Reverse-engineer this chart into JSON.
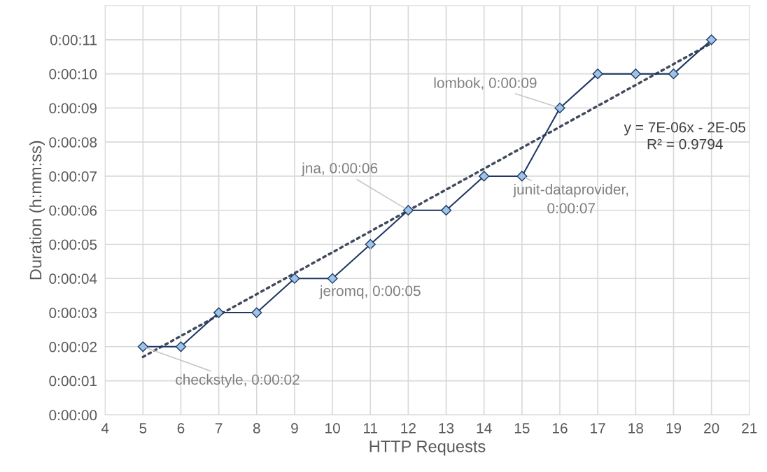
{
  "chart_data": {
    "type": "line",
    "xlabel": "HTTP Requests",
    "ylabel": "Duration (h:mm:ss)",
    "x": [
      5,
      6,
      7,
      8,
      9,
      10,
      11,
      12,
      13,
      14,
      15,
      16,
      17,
      18,
      19,
      20
    ],
    "series": [
      {
        "color": "#1f3864",
        "marker": "diamond",
        "line_style": "solid",
        "values": [
          2,
          2,
          3,
          3,
          4,
          4,
          5,
          6,
          6,
          7,
          7,
          9,
          10,
          10,
          10,
          11
        ]
      },
      {
        "color": "#404a5c",
        "marker": "none",
        "line_style": "dotted",
        "x": [
          5,
          20
        ],
        "values": [
          1.7,
          10.9
        ]
      }
    ],
    "xlim": [
      4,
      21
    ],
    "xticks": [
      4,
      5,
      6,
      7,
      8,
      9,
      10,
      11,
      12,
      13,
      14,
      15,
      16,
      17,
      18,
      19,
      20,
      21
    ],
    "ylim": [
      0,
      12
    ],
    "yticks": [
      {
        "value": 0,
        "label": "0:00:00"
      },
      {
        "value": 1,
        "label": "0:00:01"
      },
      {
        "value": 2,
        "label": "0:00:02"
      },
      {
        "value": 3,
        "label": "0:00:03"
      },
      {
        "value": 4,
        "label": "0:00:04"
      },
      {
        "value": 5,
        "label": "0:00:05"
      },
      {
        "value": 6,
        "label": "0:00:06"
      },
      {
        "value": 7,
        "label": "0:00:07"
      },
      {
        "value": 8,
        "label": "0:00:08"
      },
      {
        "value": 9,
        "label": "0:00:09"
      },
      {
        "value": 10,
        "label": "0:00:10"
      },
      {
        "value": 11,
        "label": "0:00:11"
      }
    ],
    "grid": true,
    "legend": false,
    "annotations": [
      {
        "text": "lombok, 0:00:09",
        "x": 16,
        "y": 9
      },
      {
        "text": "jna, 0:00:06",
        "x": 12,
        "y": 6
      },
      {
        "text": "junit-dataprovider,\n0:00:07",
        "x": 15,
        "y": 7
      },
      {
        "text": "jeromq, 0:00:05",
        "x": 11,
        "y": 5
      },
      {
        "text": "checkstyle, 0:00:02",
        "x": 5,
        "y": 2
      },
      "y = 7E-06x - 2E-05\nR² = 0.9794"
    ]
  }
}
